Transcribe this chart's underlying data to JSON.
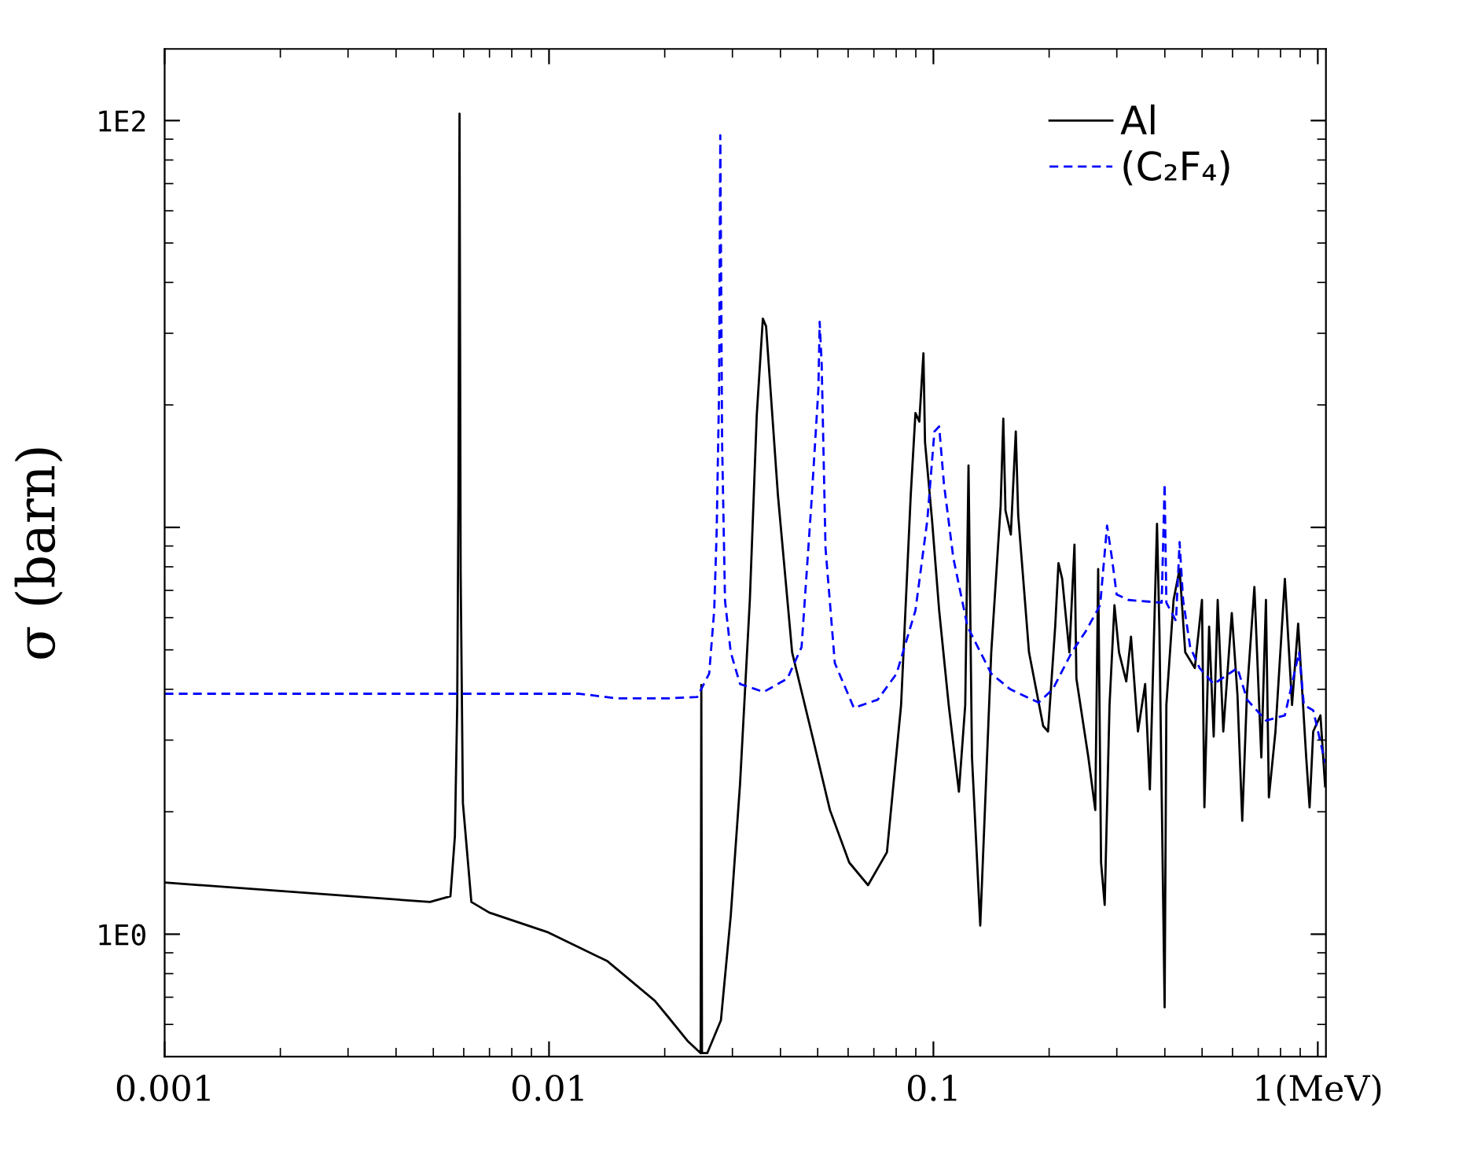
{
  "chart_data": {
    "type": "line",
    "ylabel": "σ (barn)",
    "log": "xy",
    "xlim": [
      0.001,
      1.05
    ],
    "ylim": [
      0.5,
      150
    ],
    "xticks": [
      0.001,
      0.01,
      0.1,
      {
        "value": 1,
        "label": "1(MeV)"
      }
    ],
    "yticks": [
      {
        "value": 1,
        "label": "1E0"
      },
      {
        "value": 10,
        "label": null
      },
      {
        "value": 100,
        "label": "1E2"
      }
    ],
    "grid": false,
    "legend": "top right",
    "marker": "none",
    "series": [
      {
        "name": "Al",
        "color": "#000000",
        "line_style": "solid",
        "x": [
          0.001,
          0.0049,
          0.00554,
          0.00569,
          0.00577,
          0.00581,
          0.00585,
          0.00589,
          0.00597,
          0.00628,
          0.00699,
          0.00996,
          0.0142,
          0.01885,
          0.0205,
          0.023,
          0.0248,
          0.0249,
          0.025,
          0.0258,
          0.028,
          0.0297,
          0.0314,
          0.0333,
          0.0347,
          0.036,
          0.0367,
          0.0394,
          0.0429,
          0.0481,
          0.0538,
          0.0604,
          0.0676,
          0.0757,
          0.0824,
          0.0873,
          0.0898,
          0.0919,
          0.0942,
          0.0951,
          0.0992,
          0.1035,
          0.1096,
          0.1165,
          0.121,
          0.1234,
          0.126,
          0.1324,
          0.1414,
          0.1496,
          0.152,
          0.154,
          0.159,
          0.1638,
          0.1662,
          0.1773,
          0.193,
          0.1987,
          0.2074,
          0.2115,
          0.2163,
          0.2258,
          0.2328,
          0.2355,
          0.253,
          0.2637,
          0.2683,
          0.273,
          0.279,
          0.2872,
          0.2958,
          0.304,
          0.3175,
          0.3266,
          0.3405,
          0.3555,
          0.3657,
          0.3817,
          0.3873,
          0.3995,
          0.4037,
          0.4215,
          0.437,
          0.452,
          0.4787,
          0.4997,
          0.507,
          0.5215,
          0.536,
          0.549,
          0.5677,
          0.5974,
          0.618,
          0.636,
          0.654,
          0.684,
          0.713,
          0.733,
          0.746,
          0.776,
          0.821,
          0.857,
          0.889,
          0.933,
          0.952,
          0.973,
          1.016,
          1.045
        ],
        "values": [
          1.34,
          1.2,
          1.24,
          1.74,
          3.66,
          11.2,
          104,
          7.7,
          2.1,
          1.2,
          1.13,
          1.01,
          0.858,
          0.686,
          0.623,
          0.545,
          0.51,
          4.1,
          0.51,
          0.51,
          0.614,
          1.11,
          2.34,
          6.63,
          18.8,
          32.6,
          31.2,
          12.0,
          4.93,
          3.15,
          2.02,
          1.5,
          1.32,
          1.59,
          3.66,
          12.0,
          19.1,
          18.2,
          26.8,
          16.2,
          10.4,
          6.25,
          3.66,
          2.24,
          3.66,
          14.2,
          2.72,
          1.05,
          4.93,
          11.3,
          18.5,
          11.0,
          9.6,
          17.2,
          10.7,
          4.93,
          3.25,
          3.15,
          5.7,
          8.17,
          7.47,
          4.93,
          9.07,
          4.25,
          2.72,
          2.02,
          7.9,
          1.5,
          1.18,
          3.66,
          6.44,
          4.93,
          4.18,
          5.39,
          3.15,
          4.12,
          2.27,
          10.2,
          5.55,
          0.661,
          3.66,
          6.63,
          7.9,
          4.93,
          4.51,
          6.63,
          2.05,
          5.7,
          3.06,
          6.63,
          3.15,
          6.16,
          3.88,
          1.9,
          3.88,
          7.14,
          2.72,
          6.63,
          2.17,
          3.15,
          7.47,
          3.66,
          5.8,
          2.72,
          2.05,
          3.15,
          3.45,
          2.31
        ]
      },
      {
        "name": "(C₂F₄)",
        "color": "#0000ff",
        "line_style": "dashed",
        "x": [
          0.001,
          0.012,
          0.015,
          0.0205,
          0.0243,
          0.0261,
          0.0269,
          0.0273,
          0.0277,
          0.0279,
          0.0282,
          0.0287,
          0.0297,
          0.0314,
          0.0362,
          0.0417,
          0.0454,
          0.0481,
          0.0502,
          0.0506,
          0.0512,
          0.0524,
          0.0554,
          0.0621,
          0.0716,
          0.0802,
          0.0898,
          0.0964,
          0.1006,
          0.1035,
          0.1065,
          0.1127,
          0.1227,
          0.1414,
          0.1585,
          0.1878,
          0.2044,
          0.229,
          0.249,
          0.2715,
          0.283,
          0.2914,
          0.2997,
          0.322,
          0.3925,
          0.3995,
          0.4037,
          0.4276,
          0.437,
          0.4462,
          0.4656,
          0.4926,
          0.536,
          0.618,
          0.655,
          0.733,
          0.821,
          0.894,
          0.92,
          0.973,
          1.045
        ],
        "values": [
          3.9,
          3.9,
          3.8,
          3.8,
          3.83,
          4.37,
          6.25,
          9.8,
          21.8,
          92,
          16.2,
          6.6,
          4.93,
          4.12,
          3.94,
          4.25,
          5.08,
          11.3,
          21.8,
          32,
          25.3,
          8.9,
          4.64,
          3.6,
          3.77,
          4.37,
          6.25,
          10.4,
          17.2,
          17.7,
          12.8,
          8.4,
          5.7,
          4.37,
          4.0,
          3.71,
          4.0,
          4.93,
          5.55,
          6.44,
          10.1,
          8.4,
          6.84,
          6.63,
          6.53,
          12.8,
          6.53,
          5.89,
          9.2,
          6.63,
          5.08,
          4.51,
          4.12,
          4.51,
          3.77,
          3.35,
          3.45,
          4.93,
          3.66,
          3.55,
          2.64
        ]
      }
    ]
  }
}
